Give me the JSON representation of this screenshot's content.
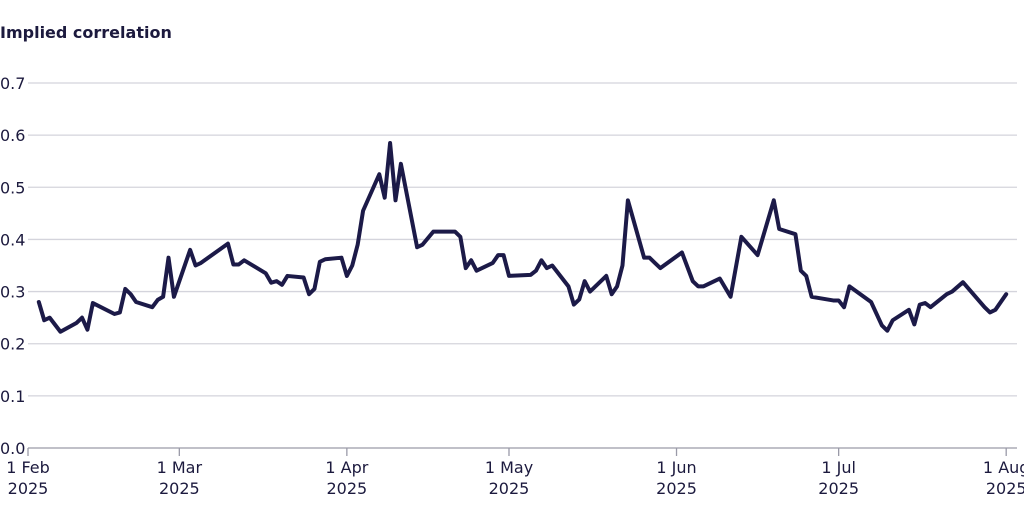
{
  "chart_data": {
    "type": "line",
    "title": "Implied correlation",
    "x": [
      "2025-02-03",
      "2025-02-04",
      "2025-02-05",
      "2025-02-07",
      "2025-02-10",
      "2025-02-11",
      "2025-02-12",
      "2025-02-13",
      "2025-02-17",
      "2025-02-18",
      "2025-02-19",
      "2025-02-20",
      "2025-02-21",
      "2025-02-24",
      "2025-02-25",
      "2025-02-26",
      "2025-02-27",
      "2025-02-28",
      "2025-03-03",
      "2025-03-04",
      "2025-03-05",
      "2025-03-10",
      "2025-03-11",
      "2025-03-12",
      "2025-03-13",
      "2025-03-17",
      "2025-03-18",
      "2025-03-19",
      "2025-03-20",
      "2025-03-21",
      "2025-03-24",
      "2025-03-25",
      "2025-03-26",
      "2025-03-27",
      "2025-03-28",
      "2025-03-31",
      "2025-04-01",
      "2025-04-02",
      "2025-04-03",
      "2025-04-04",
      "2025-04-07",
      "2025-04-08",
      "2025-04-09",
      "2025-04-10",
      "2025-04-11",
      "2025-04-14",
      "2025-04-15",
      "2025-04-17",
      "2025-04-21",
      "2025-04-22",
      "2025-04-23",
      "2025-04-24",
      "2025-04-25",
      "2025-04-28",
      "2025-04-29",
      "2025-04-30",
      "2025-05-01",
      "2025-05-05",
      "2025-05-06",
      "2025-05-07",
      "2025-05-08",
      "2025-05-09",
      "2025-05-12",
      "2025-05-13",
      "2025-05-14",
      "2025-05-15",
      "2025-05-16",
      "2025-05-19",
      "2025-05-20",
      "2025-05-21",
      "2025-05-22",
      "2025-05-23",
      "2025-05-26",
      "2025-05-27",
      "2025-05-28",
      "2025-05-29",
      "2025-06-02",
      "2025-06-04",
      "2025-06-05",
      "2025-06-06",
      "2025-06-09",
      "2025-06-11",
      "2025-06-13",
      "2025-06-16",
      "2025-06-19",
      "2025-06-20",
      "2025-06-23",
      "2025-06-24",
      "2025-06-25",
      "2025-06-26",
      "2025-06-30",
      "2025-07-01",
      "2025-07-02",
      "2025-07-03",
      "2025-07-07",
      "2025-07-09",
      "2025-07-10",
      "2025-07-11",
      "2025-07-14",
      "2025-07-15",
      "2025-07-16",
      "2025-07-17",
      "2025-07-18",
      "2025-07-21",
      "2025-07-22",
      "2025-07-24",
      "2025-07-28",
      "2025-07-29",
      "2025-07-30",
      "2025-08-01"
    ],
    "series": [
      {
        "color": "#1c1a48",
        "values": [
          0.28,
          0.245,
          0.25,
          0.223,
          0.24,
          0.25,
          0.227,
          0.278,
          0.257,
          0.26,
          0.305,
          0.295,
          0.28,
          0.27,
          0.284,
          0.29,
          0.365,
          0.29,
          0.38,
          0.35,
          0.355,
          0.392,
          0.352,
          0.352,
          0.36,
          0.335,
          0.317,
          0.32,
          0.313,
          0.33,
          0.327,
          0.295,
          0.305,
          0.357,
          0.362,
          0.365,
          0.33,
          0.35,
          0.39,
          0.455,
          0.525,
          0.48,
          0.585,
          0.475,
          0.545,
          0.385,
          0.39,
          0.415,
          0.415,
          0.405,
          0.345,
          0.36,
          0.34,
          0.355,
          0.37,
          0.37,
          0.33,
          0.332,
          0.34,
          0.36,
          0.345,
          0.35,
          0.31,
          0.275,
          0.285,
          0.32,
          0.3,
          0.33,
          0.295,
          0.31,
          0.35,
          0.475,
          0.365,
          0.365,
          0.355,
          0.345,
          0.375,
          0.32,
          0.31,
          0.31,
          0.325,
          0.29,
          0.405,
          0.37,
          0.475,
          0.42,
          0.41,
          0.34,
          0.33,
          0.29,
          0.283,
          0.283,
          0.27,
          0.31,
          0.28,
          0.235,
          0.225,
          0.245,
          0.265,
          0.237,
          0.275,
          0.278,
          0.27,
          0.295,
          0.3,
          0.318,
          0.27,
          0.26,
          0.265,
          0.295
        ]
      }
    ],
    "xlim": [
      "2025-02-01",
      "2025-08-03"
    ],
    "xticks": [
      {
        "value": "2025-02-01",
        "label": "1 Feb 2025"
      },
      {
        "value": "2025-03-01",
        "label": "1 Mar 2025"
      },
      {
        "value": "2025-04-01",
        "label": "1 Apr 2025"
      },
      {
        "value": "2025-05-01",
        "label": "1 May 2025"
      },
      {
        "value": "2025-06-01",
        "label": "1 Jun 2025"
      },
      {
        "value": "2025-07-01",
        "label": "1 Jul 2025"
      },
      {
        "value": "2025-08-01",
        "label": "1 Aug 2025"
      }
    ],
    "ylim": [
      0,
      0.7
    ],
    "yticks": [
      {
        "value": 0,
        "label": "0.0"
      },
      0.1,
      0.2,
      0.3,
      0.4,
      0.5,
      0.6,
      0.7
    ],
    "grid": true
  }
}
